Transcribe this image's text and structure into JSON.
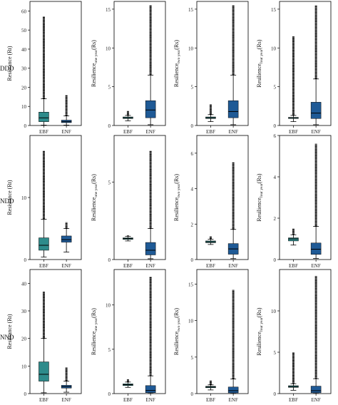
{
  "row_labels": [
    "DDD",
    "NDD",
    "NND"
  ],
  "col_ylabels": [
    {
      "base": "Resistance (Rt)",
      "sub": "",
      "tail": ""
    },
    {
      "base": "Resilience",
      "sub": "one year",
      "tail": "(Rs)"
    },
    {
      "base": "Resilience",
      "sub": "two year",
      "tail": "(Rs)"
    },
    {
      "base": "Resilience",
      "sub": "four year",
      "tail": "(Rs)"
    }
  ],
  "colors": {
    "EBF": "#2e8b8b",
    "ENF": "#1f5a96",
    "outlier": "#000000",
    "axis": "#000000"
  },
  "chart_data": [
    {
      "type": "box",
      "row": "DDD",
      "ylabel": "Resistance (Rt)",
      "categories": [
        "EBF",
        "ENF"
      ],
      "ylim": [
        0,
        65
      ],
      "yticks": [
        0,
        10,
        20,
        30,
        40,
        50,
        60
      ],
      "boxes": [
        {
          "category": "EBF",
          "whisker_low": 0.2,
          "q1": 2,
          "median": 4,
          "q3": 7,
          "whisker_high": 14,
          "outlier_max": 57
        },
        {
          "category": "ENF",
          "whisker_low": 0.2,
          "q1": 1.5,
          "median": 2,
          "q3": 2.8,
          "whisker_high": 5,
          "outlier_max": 16
        }
      ]
    },
    {
      "type": "box",
      "row": "DDD",
      "ylabel": "Resilience one year (Rs)",
      "categories": [
        "EBF",
        "ENF"
      ],
      "ylim": [
        0,
        16
      ],
      "yticks": [
        0,
        5,
        10,
        15
      ],
      "boxes": [
        {
          "category": "EBF",
          "whisker_low": 0.6,
          "q1": 0.9,
          "median": 1.0,
          "q3": 1.1,
          "whisker_high": 1.3,
          "outlier_max": 1.9
        },
        {
          "category": "ENF",
          "whisker_low": 0.1,
          "q1": 1.0,
          "median": 2.0,
          "q3": 3.2,
          "whisker_high": 6.5,
          "outlier_max": 15.5
        }
      ]
    },
    {
      "type": "box",
      "row": "DDD",
      "ylabel": "Resilience two year (Rs)",
      "categories": [
        "EBF",
        "ENF"
      ],
      "ylim": [
        0,
        16
      ],
      "yticks": [
        0,
        5,
        10,
        15
      ],
      "boxes": [
        {
          "category": "EBF",
          "whisker_low": 0.5,
          "q1": 0.9,
          "median": 1.0,
          "q3": 1.1,
          "whisker_high": 1.4,
          "outlier_max": 2.7
        },
        {
          "category": "ENF",
          "whisker_low": 0.1,
          "q1": 1.0,
          "median": 1.8,
          "q3": 3.2,
          "whisker_high": 6.5,
          "outlier_max": 15.5
        }
      ]
    },
    {
      "type": "box",
      "row": "DDD",
      "ylabel": "Resilience four year (Rs)",
      "categories": [
        "EBF",
        "ENF"
      ],
      "ylim": [
        0,
        16
      ],
      "yticks": [
        0,
        5,
        10,
        15
      ],
      "boxes": [
        {
          "category": "EBF",
          "whisker_low": 0.5,
          "q1": 0.95,
          "median": 1.0,
          "q3": 1.05,
          "whisker_high": 1.3,
          "outlier_max": 11.5
        },
        {
          "category": "ENF",
          "whisker_low": 0.1,
          "q1": 0.9,
          "median": 1.6,
          "q3": 3.0,
          "whisker_high": 6.0,
          "outlier_max": 15.5
        }
      ]
    },
    {
      "type": "box",
      "row": "NDD",
      "ylabel": "Resistance (Rt)",
      "categories": [
        "EBF",
        "ENF"
      ],
      "ylim": [
        0,
        20
      ],
      "yticks": [
        0,
        10
      ],
      "boxes": [
        {
          "category": "EBF",
          "whisker_low": 0.4,
          "q1": 1.5,
          "median": 2.3,
          "q3": 3.5,
          "whisker_high": 6.5,
          "outlier_max": 17.5
        },
        {
          "category": "ENF",
          "whisker_low": 1.2,
          "q1": 2.8,
          "median": 3.2,
          "q3": 3.8,
          "whisker_high": 5.0,
          "outlier_max": 6.0
        }
      ]
    },
    {
      "type": "box",
      "row": "NDD",
      "ylabel": "Resilience one year (Rs)",
      "categories": [
        "EBF",
        "ENF"
      ],
      "ylim": [
        0,
        8
      ],
      "yticks": [
        0,
        5
      ],
      "boxes": [
        {
          "category": "EBF",
          "whisker_low": 1.2,
          "q1": 1.3,
          "median": 1.35,
          "q3": 1.4,
          "whisker_high": 1.5,
          "outlier_max": 1.55
        },
        {
          "category": "ENF",
          "whisker_low": 0.05,
          "q1": 0.3,
          "median": 0.6,
          "q3": 1.1,
          "whisker_high": 2.0,
          "outlier_max": 7.0
        }
      ]
    },
    {
      "type": "box",
      "row": "NDD",
      "ylabel": "Resilience two year (Rs)",
      "categories": [
        "EBF",
        "ENF"
      ],
      "ylim": [
        0,
        7
      ],
      "yticks": [
        0,
        2,
        4,
        6
      ],
      "boxes": [
        {
          "category": "EBF",
          "whisker_low": 0.85,
          "q1": 0.95,
          "median": 1.0,
          "q3": 1.05,
          "whisker_high": 1.15,
          "outlier_max": 1.3
        },
        {
          "category": "ENF",
          "whisker_low": 0.05,
          "q1": 0.3,
          "median": 0.6,
          "q3": 0.9,
          "whisker_high": 1.7,
          "outlier_max": 5.5
        }
      ]
    },
    {
      "type": "box",
      "row": "NDD",
      "ylabel": "Resilience four year (Rs)",
      "categories": [
        "EBF",
        "ENF"
      ],
      "ylim": [
        0,
        6
      ],
      "yticks": [
        0,
        2,
        4,
        6
      ],
      "boxes": [
        {
          "category": "EBF",
          "whisker_low": 0.7,
          "q1": 0.9,
          "median": 1.0,
          "q3": 1.05,
          "whisker_high": 1.2,
          "outlier_max": 1.5
        },
        {
          "category": "ENF",
          "whisker_low": 0.05,
          "q1": 0.25,
          "median": 0.5,
          "q3": 0.8,
          "whisker_high": 1.6,
          "outlier_max": 5.6
        }
      ]
    },
    {
      "type": "box",
      "row": "NND",
      "ylabel": "Resistance (Rt)",
      "categories": [
        "EBF",
        "ENF"
      ],
      "ylim": [
        0,
        45
      ],
      "yticks": [
        0,
        10,
        20,
        30,
        40
      ],
      "boxes": [
        {
          "category": "EBF",
          "whisker_low": 0.3,
          "q1": 4.5,
          "median": 7,
          "q3": 11.5,
          "whisker_high": 20,
          "outlier_max": 37
        },
        {
          "category": "ENF",
          "whisker_low": 0.5,
          "q1": 2.0,
          "median": 2.5,
          "q3": 3.0,
          "whisker_high": 4.5,
          "outlier_max": 9.5
        }
      ]
    },
    {
      "type": "box",
      "row": "NND",
      "ylabel": "Resilience one year (Rs)",
      "categories": [
        "EBF",
        "ENF"
      ],
      "ylim": [
        0,
        14
      ],
      "yticks": [
        0,
        5,
        10
      ],
      "boxes": [
        {
          "category": "EBF",
          "whisker_low": 0.7,
          "q1": 0.9,
          "median": 1.0,
          "q3": 1.1,
          "whisker_high": 1.3,
          "outlier_max": 1.6
        },
        {
          "category": "ENF",
          "whisker_low": 0.02,
          "q1": 0.1,
          "median": 0.35,
          "q3": 0.9,
          "whisker_high": 2.0,
          "outlier_max": 13.2
        }
      ]
    },
    {
      "type": "box",
      "row": "NND",
      "ylabel": "Resilience two year (Rs)",
      "categories": [
        "EBF",
        "ENF"
      ],
      "ylim": [
        0,
        17
      ],
      "yticks": [
        0,
        5,
        10,
        15
      ],
      "boxes": [
        {
          "category": "EBF",
          "whisker_low": 0.5,
          "q1": 0.8,
          "median": 0.9,
          "q3": 1.0,
          "whisker_high": 1.2,
          "outlier_max": 1.8
        },
        {
          "category": "ENF",
          "whisker_low": 0.02,
          "q1": 0.1,
          "median": 0.4,
          "q3": 0.9,
          "whisker_high": 2.0,
          "outlier_max": 14.2
        }
      ]
    },
    {
      "type": "box",
      "row": "NND",
      "ylabel": "Resilience four year (Rs)",
      "categories": [
        "EBF",
        "ENF"
      ],
      "ylim": [
        0,
        15
      ],
      "yticks": [
        0,
        5,
        10
      ],
      "boxes": [
        {
          "category": "EBF",
          "whisker_low": 0.4,
          "q1": 0.75,
          "median": 0.85,
          "q3": 0.95,
          "whisker_high": 1.2,
          "outlier_max": 5.0
        },
        {
          "category": "ENF",
          "whisker_low": 0.02,
          "q1": 0.1,
          "median": 0.35,
          "q3": 0.9,
          "whisker_high": 1.8,
          "outlier_max": 14.2
        }
      ]
    }
  ]
}
